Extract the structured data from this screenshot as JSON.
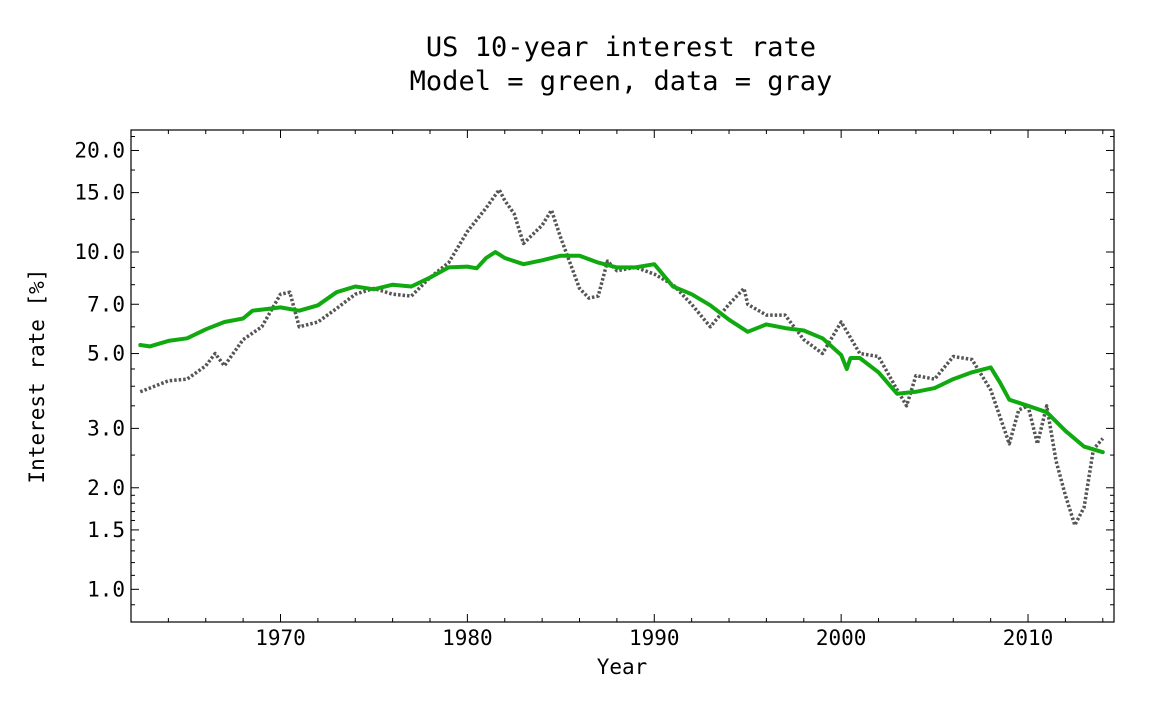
{
  "chart_data": {
    "type": "line",
    "title": "US 10-year interest rate",
    "subtitle": "Model = green, data = gray",
    "xlabel": "Year",
    "ylabel": "Interest rate [%]",
    "xlim": [
      1962,
      2014.6
    ],
    "ylim": [
      0.8,
      23
    ],
    "yscale": "log",
    "grid": false,
    "x_ticks": [
      1970,
      1980,
      1990,
      2000,
      2010
    ],
    "x_tick_labels": [
      "1970",
      "1980",
      "1990",
      "2000",
      "2010"
    ],
    "y_ticks": [
      1.0,
      1.5,
      2.0,
      3.0,
      5.0,
      7.0,
      10.0,
      15.0,
      20.0
    ],
    "y_tick_labels": [
      "1.0",
      "1.5",
      "2.0",
      "3.0",
      "5.0",
      "7.0",
      "10.0",
      "15.0",
      "20.0"
    ],
    "series": [
      {
        "name": "Model",
        "color": "#10aa10",
        "style": "solid",
        "points": [
          [
            1962.5,
            5.3
          ],
          [
            1963.0,
            5.25
          ],
          [
            1964.0,
            5.45
          ],
          [
            1965.0,
            5.55
          ],
          [
            1966.0,
            5.9
          ],
          [
            1967.0,
            6.2
          ],
          [
            1968.0,
            6.35
          ],
          [
            1968.5,
            6.7
          ],
          [
            1969.0,
            6.75
          ],
          [
            1970.0,
            6.85
          ],
          [
            1971.0,
            6.7
          ],
          [
            1972.0,
            6.95
          ],
          [
            1973.0,
            7.6
          ],
          [
            1974.0,
            7.9
          ],
          [
            1975.0,
            7.75
          ],
          [
            1976.0,
            8.0
          ],
          [
            1977.0,
            7.9
          ],
          [
            1978.0,
            8.4
          ],
          [
            1979.0,
            9.0
          ],
          [
            1980.0,
            9.05
          ],
          [
            1980.5,
            8.95
          ],
          [
            1981.0,
            9.6
          ],
          [
            1981.5,
            10.0
          ],
          [
            1982.0,
            9.6
          ],
          [
            1983.0,
            9.2
          ],
          [
            1984.0,
            9.45
          ],
          [
            1985.0,
            9.75
          ],
          [
            1986.0,
            9.75
          ],
          [
            1987.0,
            9.3
          ],
          [
            1988.0,
            9.0
          ],
          [
            1989.0,
            9.0
          ],
          [
            1990.0,
            9.2
          ],
          [
            1991.0,
            7.9
          ],
          [
            1992.0,
            7.5
          ],
          [
            1993.0,
            6.95
          ],
          [
            1994.0,
            6.3
          ],
          [
            1995.0,
            5.8
          ],
          [
            1996.0,
            6.1
          ],
          [
            1997.0,
            5.95
          ],
          [
            1998.0,
            5.85
          ],
          [
            1999.0,
            5.55
          ],
          [
            2000.0,
            4.95
          ],
          [
            2000.3,
            4.5
          ],
          [
            2000.5,
            4.85
          ],
          [
            2001.0,
            4.85
          ],
          [
            2002.0,
            4.4
          ],
          [
            2003.0,
            3.8
          ],
          [
            2004.0,
            3.85
          ],
          [
            2005.0,
            3.95
          ],
          [
            2006.0,
            4.2
          ],
          [
            2007.0,
            4.4
          ],
          [
            2008.0,
            4.55
          ],
          [
            2008.5,
            4.1
          ],
          [
            2009.0,
            3.65
          ],
          [
            2010.0,
            3.5
          ],
          [
            2011.0,
            3.35
          ],
          [
            2012.0,
            2.95
          ],
          [
            2013.0,
            2.65
          ],
          [
            2014.0,
            2.55
          ]
        ]
      },
      {
        "name": "data",
        "color": "#555555",
        "style": "dotted",
        "points": [
          [
            1962.5,
            3.85
          ],
          [
            1963.0,
            3.95
          ],
          [
            1964.0,
            4.15
          ],
          [
            1965.0,
            4.2
          ],
          [
            1966.0,
            4.6
          ],
          [
            1966.5,
            5.0
          ],
          [
            1967.0,
            4.6
          ],
          [
            1968.0,
            5.5
          ],
          [
            1969.0,
            6.0
          ],
          [
            1970.0,
            7.5
          ],
          [
            1970.5,
            7.6
          ],
          [
            1971.0,
            6.0
          ],
          [
            1972.0,
            6.2
          ],
          [
            1973.0,
            6.8
          ],
          [
            1974.0,
            7.5
          ],
          [
            1975.0,
            7.8
          ],
          [
            1976.0,
            7.5
          ],
          [
            1977.0,
            7.4
          ],
          [
            1978.0,
            8.4
          ],
          [
            1979.0,
            9.3
          ],
          [
            1980.0,
            11.5
          ],
          [
            1981.0,
            13.5
          ],
          [
            1981.7,
            15.3
          ],
          [
            1982.0,
            14.2
          ],
          [
            1982.5,
            13.0
          ],
          [
            1983.0,
            10.6
          ],
          [
            1984.0,
            12.0
          ],
          [
            1984.5,
            13.3
          ],
          [
            1985.0,
            11.0
          ],
          [
            1986.0,
            7.8
          ],
          [
            1986.5,
            7.3
          ],
          [
            1987.0,
            7.4
          ],
          [
            1987.5,
            9.4
          ],
          [
            1988.0,
            8.8
          ],
          [
            1989.0,
            9.0
          ],
          [
            1990.0,
            8.6
          ],
          [
            1991.0,
            8.0
          ],
          [
            1992.0,
            7.0
          ],
          [
            1993.0,
            6.0
          ],
          [
            1994.0,
            7.0
          ],
          [
            1994.8,
            7.8
          ],
          [
            1995.0,
            7.0
          ],
          [
            1996.0,
            6.5
          ],
          [
            1997.0,
            6.5
          ],
          [
            1998.0,
            5.5
          ],
          [
            1999.0,
            5.0
          ],
          [
            2000.0,
            6.2
          ],
          [
            2001.0,
            5.0
          ],
          [
            2002.0,
            4.9
          ],
          [
            2003.0,
            3.9
          ],
          [
            2003.5,
            3.5
          ],
          [
            2004.0,
            4.3
          ],
          [
            2005.0,
            4.2
          ],
          [
            2006.0,
            4.9
          ],
          [
            2007.0,
            4.8
          ],
          [
            2008.0,
            3.9
          ],
          [
            2009.0,
            2.7
          ],
          [
            2009.5,
            3.4
          ],
          [
            2010.0,
            3.5
          ],
          [
            2010.5,
            2.7
          ],
          [
            2011.0,
            3.5
          ],
          [
            2011.5,
            2.4
          ],
          [
            2012.0,
            1.9
          ],
          [
            2012.5,
            1.55
          ],
          [
            2013.0,
            1.75
          ],
          [
            2013.5,
            2.6
          ],
          [
            2014.0,
            2.8
          ]
        ]
      }
    ]
  }
}
